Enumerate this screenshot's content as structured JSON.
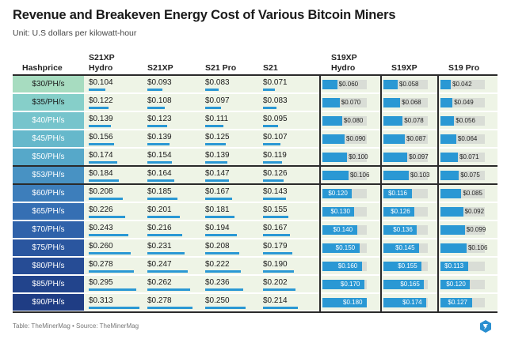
{
  "title": "Revenue and Breakeven Energy Cost of Various Bitcoin Miners",
  "subtitle": "Unit: U.S dollars per kilowatt-hour",
  "footer": "Table: TheMinerMag • Source: TheMinerMag",
  "colors": {
    "hashprice_scale": [
      "#a7dcc0",
      "#86cfc9",
      "#76c4cc",
      "#66b8cb",
      "#56a8c9",
      "#4892c3",
      "#3d7ebb",
      "#356fb3",
      "#2f62aa",
      "#2a569f",
      "#264c95",
      "#22448c",
      "#1f3d84"
    ],
    "bar": "#2a98d4",
    "track": "#d9ddd6",
    "row_bg": "#eef4e6"
  },
  "table": {
    "hashprice_header": "Hashprice",
    "columns": [
      "S21XP Hydro",
      "S21XP",
      "S21 Pro",
      "S21",
      "S19XP Hydro",
      "S19XP",
      "S19 Pro"
    ],
    "rows": [
      {
        "hashprice": "$30/PH/s",
        "values": [
          "$0.104",
          "$0.093",
          "$0.083",
          "$0.071",
          "$0.060",
          "$0.058",
          "$0.042"
        ]
      },
      {
        "hashprice": "$35/PH/s",
        "values": [
          "$0.122",
          "$0.108",
          "$0.097",
          "$0.083",
          "$0.070",
          "$0.068",
          "$0.049"
        ]
      },
      {
        "hashprice": "$40/PH/s",
        "values": [
          "$0.139",
          "$0.123",
          "$0.111",
          "$0.095",
          "$0.080",
          "$0.078",
          "$0.056"
        ]
      },
      {
        "hashprice": "$45/PH/s",
        "values": [
          "$0.156",
          "$0.139",
          "$0.125",
          "$0.107",
          "$0.090",
          "$0.087",
          "$0.064"
        ]
      },
      {
        "hashprice": "$50/PH/s",
        "values": [
          "$0.174",
          "$0.154",
          "$0.139",
          "$0.119",
          "$0.100",
          "$0.097",
          "$0.071"
        ]
      },
      {
        "hashprice": "$53/PH/s",
        "values": [
          "$0.184",
          "$0.164",
          "$0.147",
          "$0.126",
          "$0.106",
          "$0.103",
          "$0.075"
        ]
      },
      {
        "hashprice": "$60/PH/s",
        "values": [
          "$0.208",
          "$0.185",
          "$0.167",
          "$0.143",
          "$0.120",
          "$0.116",
          "$0.085"
        ]
      },
      {
        "hashprice": "$65/PH/s",
        "values": [
          "$0.226",
          "$0.201",
          "$0.181",
          "$0.155",
          "$0.130",
          "$0.126",
          "$0.092"
        ]
      },
      {
        "hashprice": "$70/PH/s",
        "values": [
          "$0.243",
          "$0.216",
          "$0.194",
          "$0.167",
          "$0.140",
          "$0.136",
          "$0.099"
        ]
      },
      {
        "hashprice": "$75/PH/s",
        "values": [
          "$0.260",
          "$0.231",
          "$0.208",
          "$0.179",
          "$0.150",
          "$0.145",
          "$0.106"
        ]
      },
      {
        "hashprice": "$80/PH/s",
        "values": [
          "$0.278",
          "$0.247",
          "$0.222",
          "$0.190",
          "$0.160",
          "$0.155",
          "$0.113"
        ]
      },
      {
        "hashprice": "$85/PH/s",
        "values": [
          "$0.295",
          "$0.262",
          "$0.236",
          "$0.202",
          "$0.170",
          "$0.165",
          "$0.120"
        ]
      },
      {
        "hashprice": "$90/PH/s",
        "values": [
          "$0.313",
          "$0.278",
          "$0.250",
          "$0.214",
          "$0.180",
          "$0.174",
          "$0.127"
        ]
      }
    ]
  },
  "chart_data": {
    "type": "table",
    "title": "Revenue and Breakeven Energy Cost of Various Bitcoin Miners",
    "subtitle": "Unit: U.S dollars per kilowatt-hour",
    "categories": [
      "$30/PH/s",
      "$35/PH/s",
      "$40/PH/s",
      "$45/PH/s",
      "$50/PH/s",
      "$53/PH/s",
      "$60/PH/s",
      "$65/PH/s",
      "$70/PH/s",
      "$75/PH/s",
      "$80/PH/s",
      "$85/PH/s",
      "$90/PH/s"
    ],
    "series": [
      {
        "name": "S21XP Hydro",
        "values": [
          0.104,
          0.122,
          0.139,
          0.156,
          0.174,
          0.184,
          0.208,
          0.226,
          0.243,
          0.26,
          0.278,
          0.295,
          0.313
        ]
      },
      {
        "name": "S21XP",
        "values": [
          0.093,
          0.108,
          0.123,
          0.139,
          0.154,
          0.164,
          0.185,
          0.201,
          0.216,
          0.231,
          0.247,
          0.262,
          0.278
        ]
      },
      {
        "name": "S21 Pro",
        "values": [
          0.083,
          0.097,
          0.111,
          0.125,
          0.139,
          0.147,
          0.167,
          0.181,
          0.194,
          0.208,
          0.222,
          0.236,
          0.25
        ]
      },
      {
        "name": "S21",
        "values": [
          0.071,
          0.083,
          0.095,
          0.107,
          0.119,
          0.126,
          0.143,
          0.155,
          0.167,
          0.179,
          0.19,
          0.202,
          0.214
        ]
      },
      {
        "name": "S19XP Hydro",
        "values": [
          0.06,
          0.07,
          0.08,
          0.09,
          0.1,
          0.106,
          0.12,
          0.13,
          0.14,
          0.15,
          0.16,
          0.17,
          0.18
        ]
      },
      {
        "name": "S19XP",
        "values": [
          0.058,
          0.068,
          0.078,
          0.087,
          0.097,
          0.103,
          0.116,
          0.126,
          0.136,
          0.145,
          0.155,
          0.165,
          0.174
        ]
      },
      {
        "name": "S19 Pro",
        "values": [
          0.042,
          0.049,
          0.056,
          0.064,
          0.071,
          0.075,
          0.085,
          0.092,
          0.099,
          0.106,
          0.113,
          0.12,
          0.127
        ]
      }
    ]
  }
}
